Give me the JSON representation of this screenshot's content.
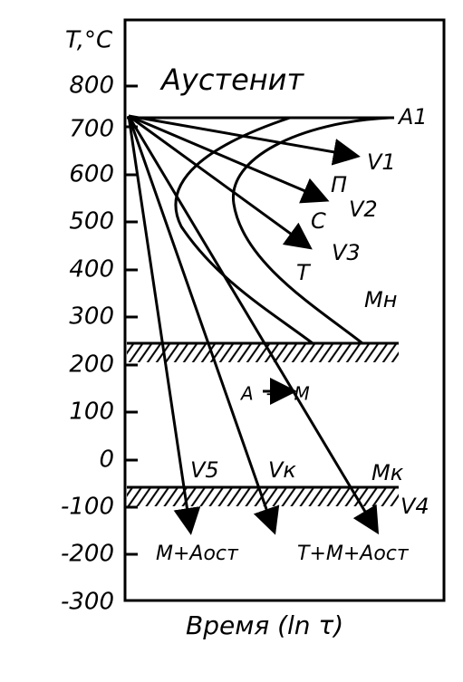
{
  "axis": {
    "label": "T,°C",
    "ticks": [
      800,
      700,
      600,
      500,
      400,
      300,
      200,
      100,
      0,
      -100,
      -200,
      -300
    ],
    "x_label": "Время (ln τ)"
  },
  "regions": {
    "austenite": "Аустенит",
    "a1": "A1",
    "mn": "Mн",
    "mk": "Mк",
    "transform": "A→M"
  },
  "curves": {
    "p": "П",
    "c": "C",
    "t": "T",
    "v1": "V1",
    "v2": "V2",
    "v3": "V3",
    "v4": "V4",
    "v5": "V5",
    "vk": "Vк"
  },
  "products": {
    "left": "M+Aост",
    "right": "T+M+Aост"
  }
}
